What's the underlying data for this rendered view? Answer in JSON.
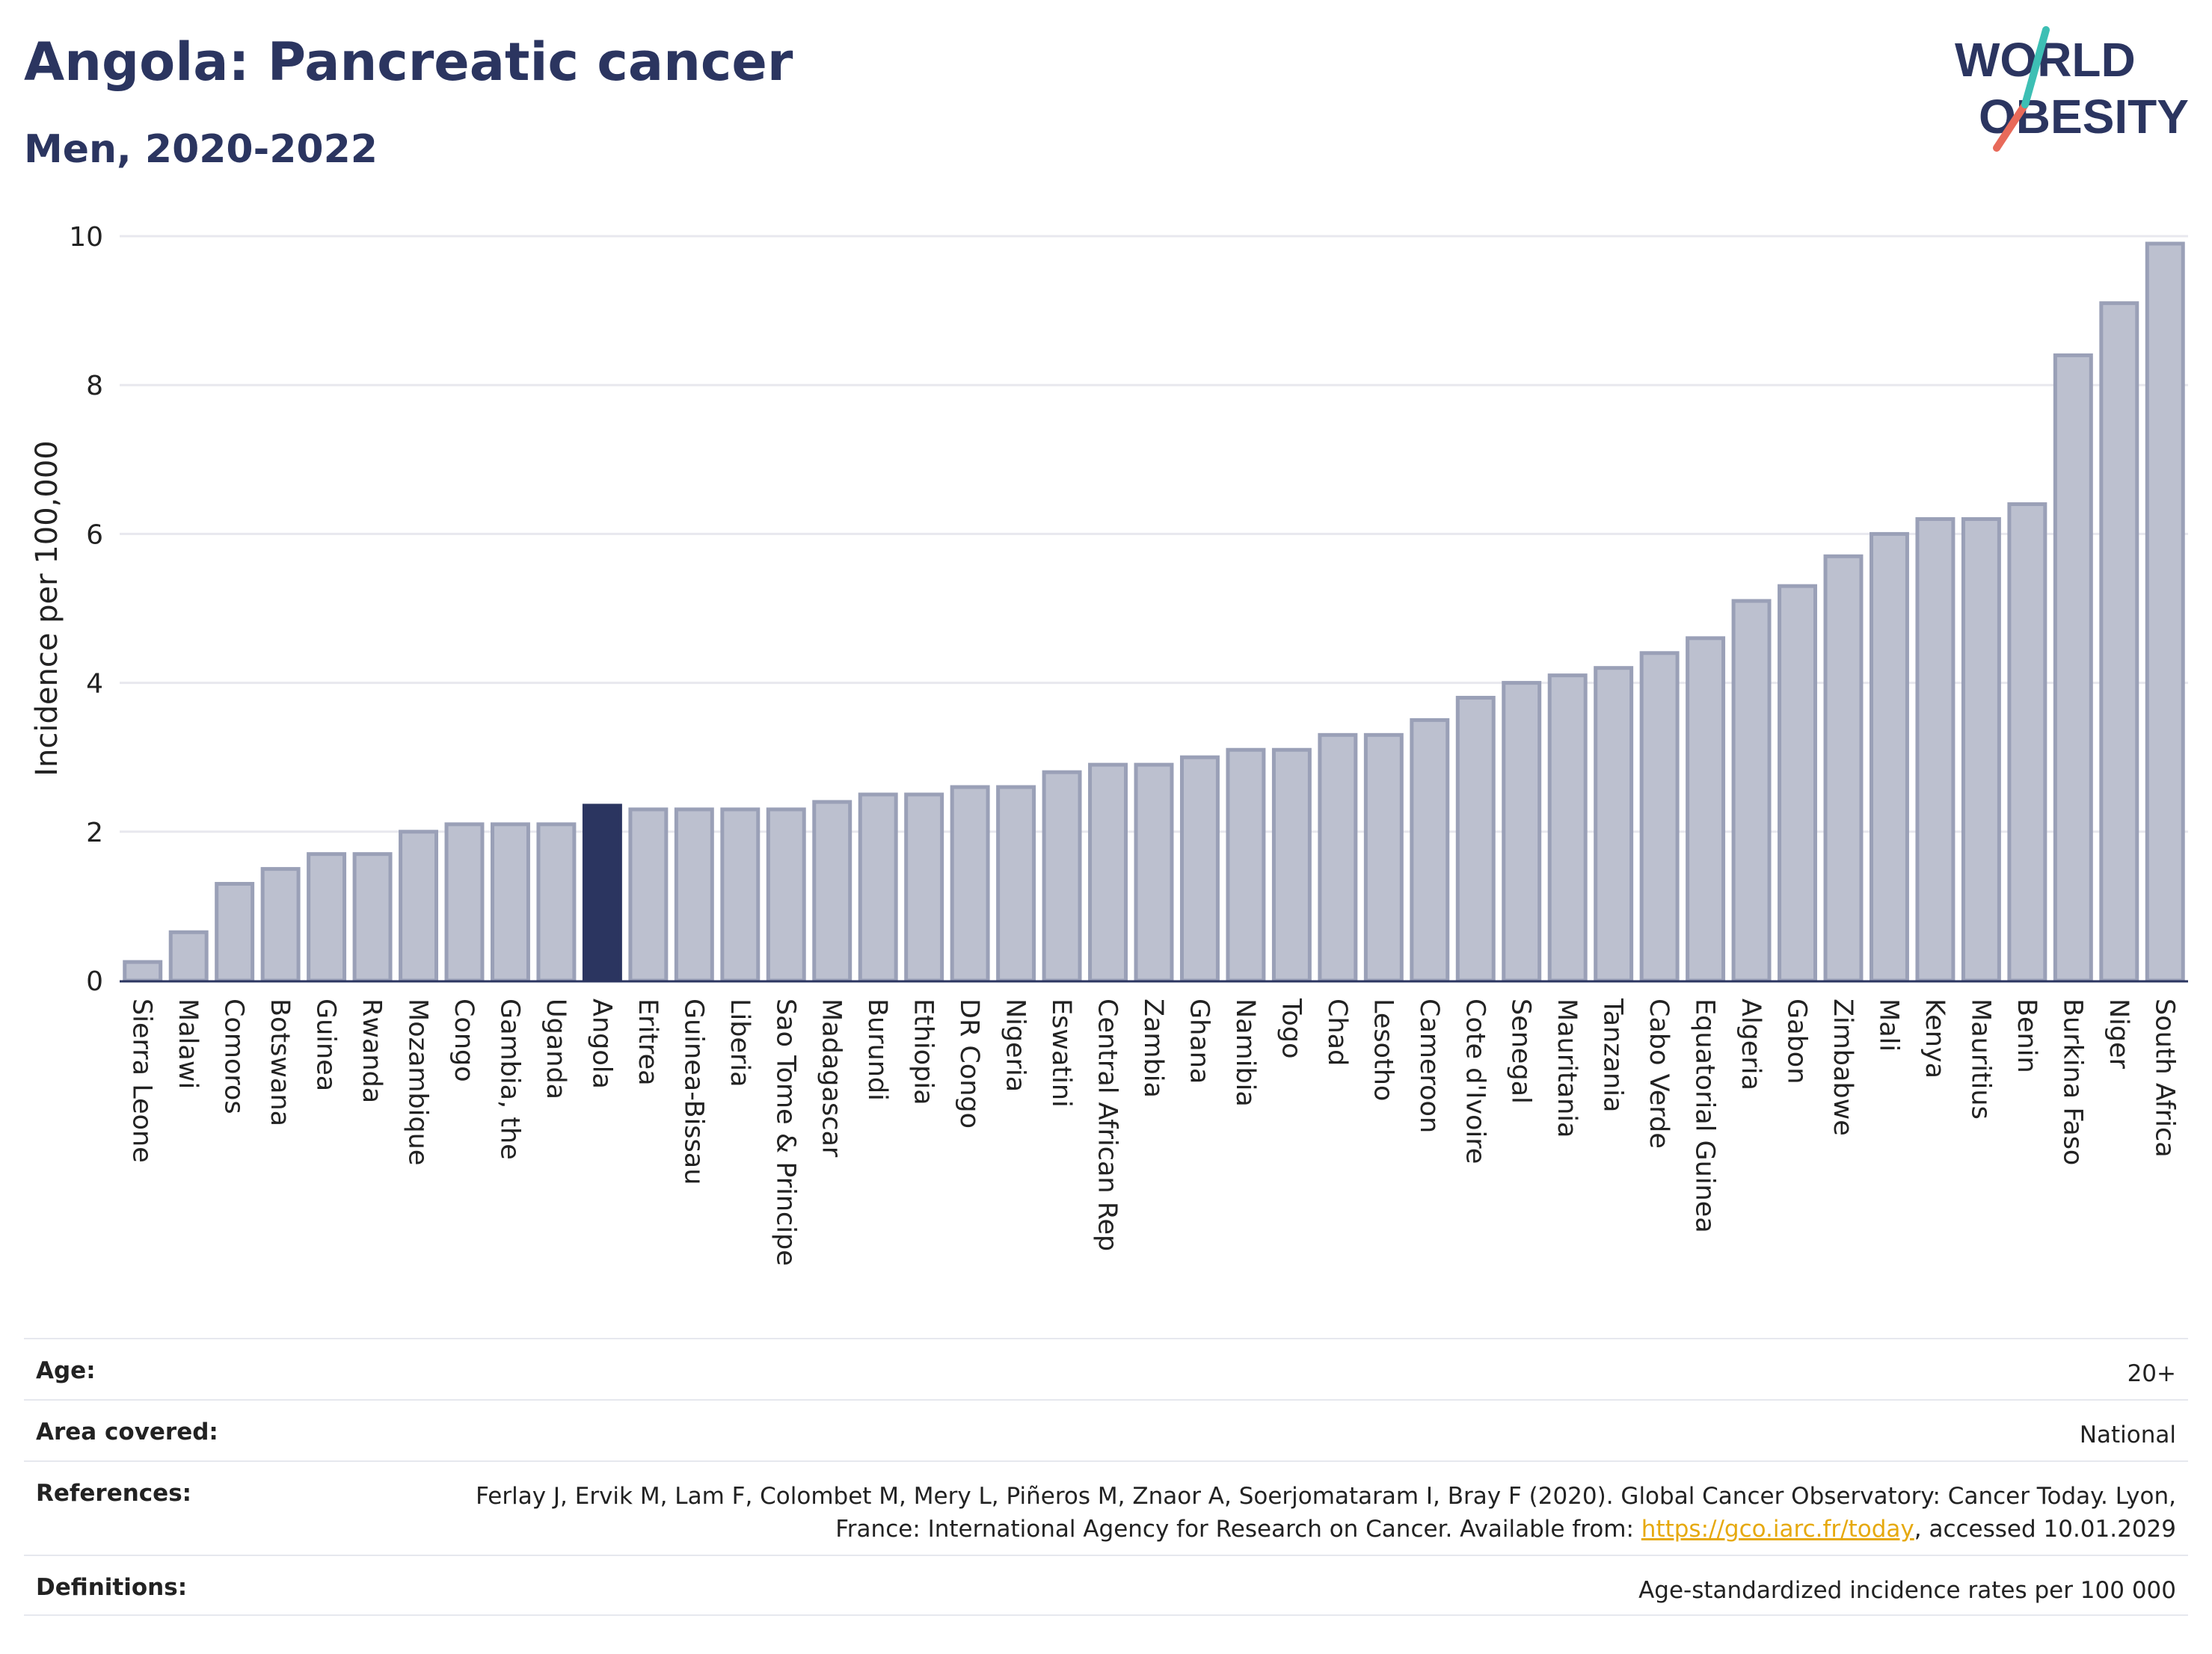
{
  "header": {
    "title": "Angola: Pancreatic cancer",
    "subtitle": "Men, 2020-2022"
  },
  "logo": {
    "line1": "WORLD",
    "line2": "OBESITY"
  },
  "colors": {
    "bar": "#bcc0cf",
    "bar_border": "#9aa0b7",
    "highlight": "#2b3560",
    "text": "#2b3560",
    "grid": "#e8e8ee",
    "link": "#e6a90f"
  },
  "chart_data": {
    "type": "bar",
    "ylabel": "Incidence per 100,000",
    "ylim": [
      0,
      10
    ],
    "yticks": [
      0,
      2,
      4,
      6,
      8,
      10
    ],
    "grid": true,
    "highlight": "Angola",
    "categories": [
      "Sierra Leone",
      "Malawi",
      "Comoros",
      "Botswana",
      "Guinea",
      "Rwanda",
      "Mozambique",
      "Congo",
      "Gambia, the",
      "Uganda",
      "Angola",
      "Eritrea",
      "Guinea-Bissau",
      "Liberia",
      "Sao Tome & Principe",
      "Madagascar",
      "Burundi",
      "Ethiopia",
      "DR Congo",
      "Nigeria",
      "Eswatini",
      "Central African Rep",
      "Zambia",
      "Ghana",
      "Namibia",
      "Togo",
      "Chad",
      "Lesotho",
      "Cameroon",
      "Cote d'Ivoire",
      "Senegal",
      "Mauritania",
      "Tanzania",
      "Cabo Verde",
      "Equatorial Guinea",
      "Algeria",
      "Gabon",
      "Zimbabwe",
      "Mali",
      "Kenya",
      "Mauritius",
      "Benin",
      "Burkina Faso",
      "Niger",
      "South Africa"
    ],
    "values": [
      0.25,
      0.65,
      1.3,
      1.5,
      1.7,
      1.7,
      2.0,
      2.1,
      2.1,
      2.1,
      2.35,
      2.3,
      2.3,
      2.3,
      2.3,
      2.4,
      2.5,
      2.5,
      2.6,
      2.6,
      2.8,
      2.9,
      2.9,
      3.0,
      3.1,
      3.1,
      3.3,
      3.3,
      3.5,
      3.8,
      4.0,
      4.1,
      4.2,
      4.4,
      4.6,
      5.1,
      5.3,
      5.7,
      6.0,
      6.2,
      6.2,
      6.4,
      8.4,
      9.1,
      9.9
    ]
  },
  "meta": {
    "age_label": "Age:",
    "age_value": "20+",
    "area_label": "Area covered:",
    "area_value": "National",
    "refs_label": "References:",
    "refs_text_before": "Ferlay J, Ervik M, Lam F, Colombet M, Mery L, Piñeros M, Znaor A, Soerjomataram I, Bray F (2020). Global Cancer Observatory: Cancer Today. Lyon, France: International Agency for Research on Cancer. Available from: ",
    "refs_link": "https://gco.iarc.fr/today",
    "refs_text_after": ", accessed 10.01.2029",
    "defs_label": "Definitions:",
    "defs_value": "Age-standardized incidence rates per 100 000"
  }
}
